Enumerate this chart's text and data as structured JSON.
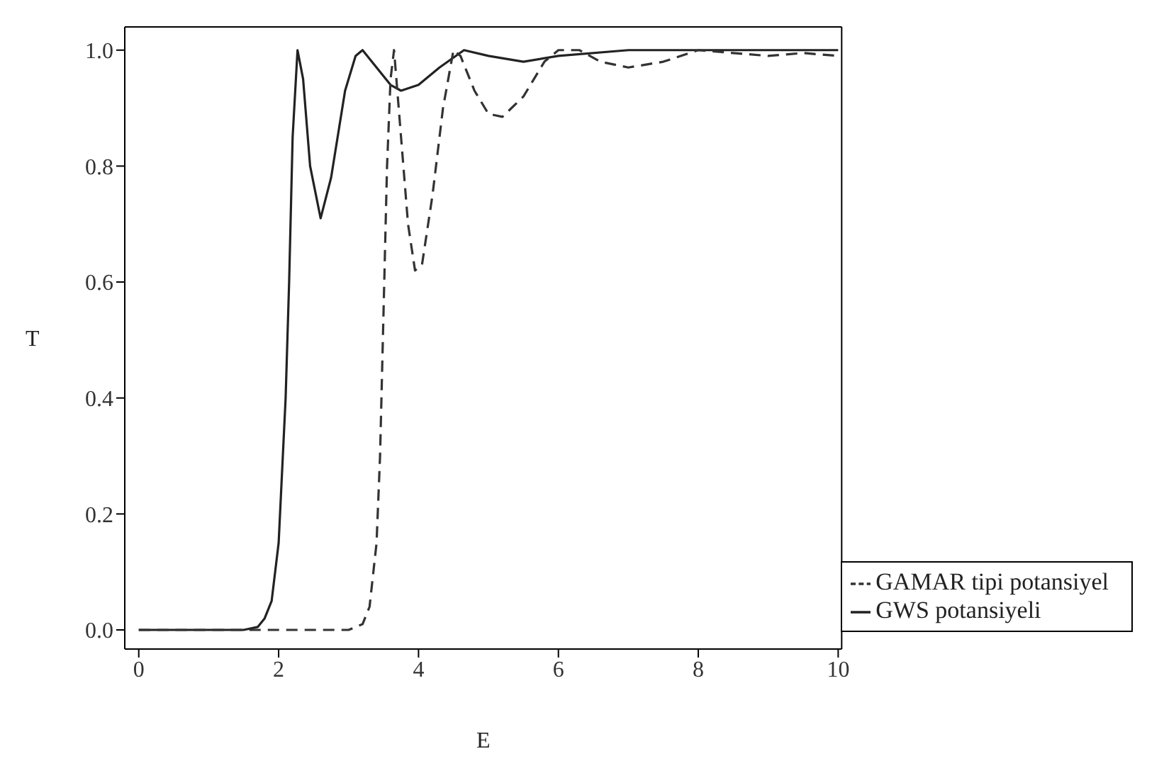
{
  "chart_data": {
    "type": "line",
    "xlabel": "E",
    "ylabel": "T",
    "xlim": [
      -0.2,
      10.05
    ],
    "ylim": [
      -0.033,
      1.04
    ],
    "xticks": [
      0,
      2,
      4,
      6,
      8,
      10
    ],
    "yticks": [
      {
        "value": 0,
        "label": "0.0"
      },
      0.2,
      0.4,
      0.6,
      0.8,
      {
        "value": 1,
        "label": "1.0"
      }
    ],
    "grid": false,
    "legend": "bottom right",
    "marker": "none",
    "series": [
      {
        "name": "GWS potansiyeli",
        "color": "#222222",
        "line_style": "solid",
        "x": [
          0,
          1,
          1.5,
          1.7,
          1.8,
          1.9,
          2.0,
          2.1,
          2.15,
          2.2,
          2.27,
          2.35,
          2.45,
          2.6,
          2.75,
          2.95,
          3.1,
          3.2,
          3.4,
          3.6,
          3.75,
          4.0,
          4.3,
          4.65,
          5.0,
          5.5,
          6,
          7,
          8,
          9,
          10
        ],
        "values": [
          0,
          0,
          0,
          0.005,
          0.02,
          0.05,
          0.15,
          0.4,
          0.6,
          0.85,
          1.0,
          0.95,
          0.8,
          0.71,
          0.78,
          0.93,
          0.99,
          1.0,
          0.97,
          0.94,
          0.93,
          0.94,
          0.97,
          1.0,
          0.99,
          0.98,
          0.99,
          1.0,
          1.0,
          1.0,
          1.0
        ]
      },
      {
        "name": "GAMAR tipi potansiyel",
        "color": "#333333",
        "line_style": "dashed",
        "x": [
          0,
          1,
          2,
          3.0,
          3.2,
          3.3,
          3.4,
          3.45,
          3.5,
          3.55,
          3.6,
          3.65,
          3.75,
          3.85,
          3.95,
          4.05,
          4.2,
          4.35,
          4.5,
          4.6,
          4.8,
          5.0,
          5.2,
          5.5,
          5.8,
          6.0,
          6.3,
          6.6,
          7.0,
          7.5,
          8,
          9,
          9.5,
          10
        ],
        "values": [
          0,
          0,
          0,
          0,
          0.01,
          0.04,
          0.15,
          0.3,
          0.55,
          0.8,
          0.95,
          1.0,
          0.85,
          0.7,
          0.62,
          0.63,
          0.75,
          0.9,
          1.0,
          0.99,
          0.93,
          0.89,
          0.885,
          0.92,
          0.98,
          1.0,
          1.0,
          0.98,
          0.97,
          0.98,
          1.0,
          0.99,
          0.995,
          0.99
        ]
      }
    ]
  }
}
